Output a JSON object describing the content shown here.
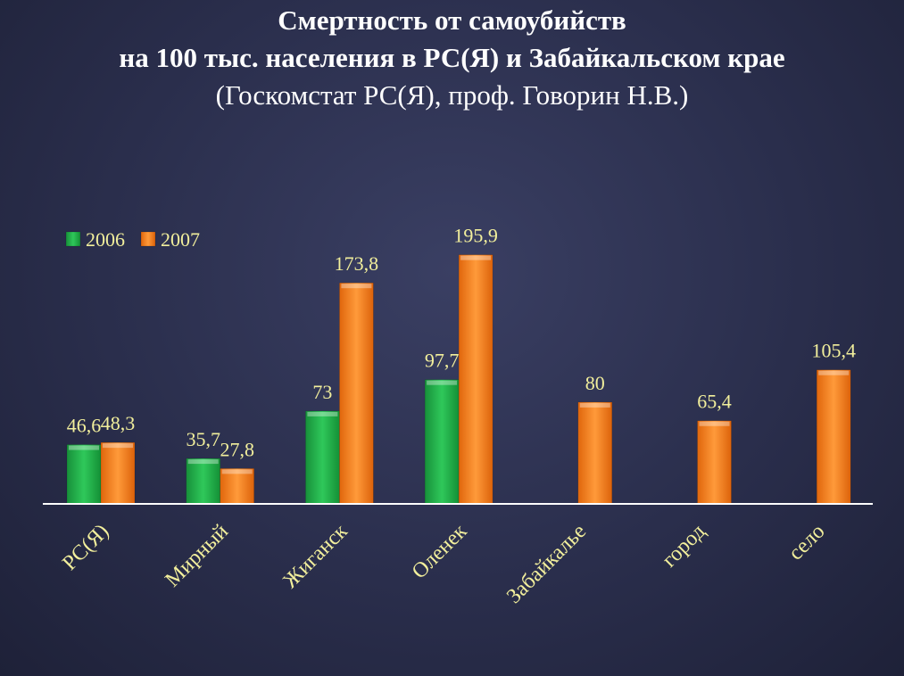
{
  "title": {
    "line1": "Смертность от самоубийств",
    "line2": "на 100 тыс. населения в РС(Я) и Забайкальском крае",
    "line3": "(Госкомстат РС(Я), проф. Говорин Н.В.)"
  },
  "colors": {
    "series_2006": "#22b14c",
    "series_2007": "#f7861e",
    "label": "#f2ef9c",
    "axis": "#ffffff"
  },
  "chart_data": {
    "type": "bar",
    "categories": [
      "РС(Я)",
      "Мирный",
      "Жиганск",
      "Оленек",
      "Забайкалье",
      "город",
      "село"
    ],
    "series": [
      {
        "name": "2006",
        "values": [
          46.6,
          35.7,
          73,
          97.7,
          null,
          null,
          null
        ]
      },
      {
        "name": "2007",
        "values": [
          48.3,
          27.8,
          173.8,
          195.9,
          80,
          65.4,
          105.4
        ]
      }
    ],
    "data_labels": [
      [
        "46,6",
        "35,7",
        "73",
        "97,7",
        null,
        null,
        null
      ],
      [
        "48,3",
        "27,8",
        "173,8",
        "195,9",
        "80",
        "65,4",
        "105,4"
      ]
    ],
    "ylim": [
      0,
      200
    ],
    "grid": false,
    "legend": "top-left",
    "axes_visible": false
  }
}
